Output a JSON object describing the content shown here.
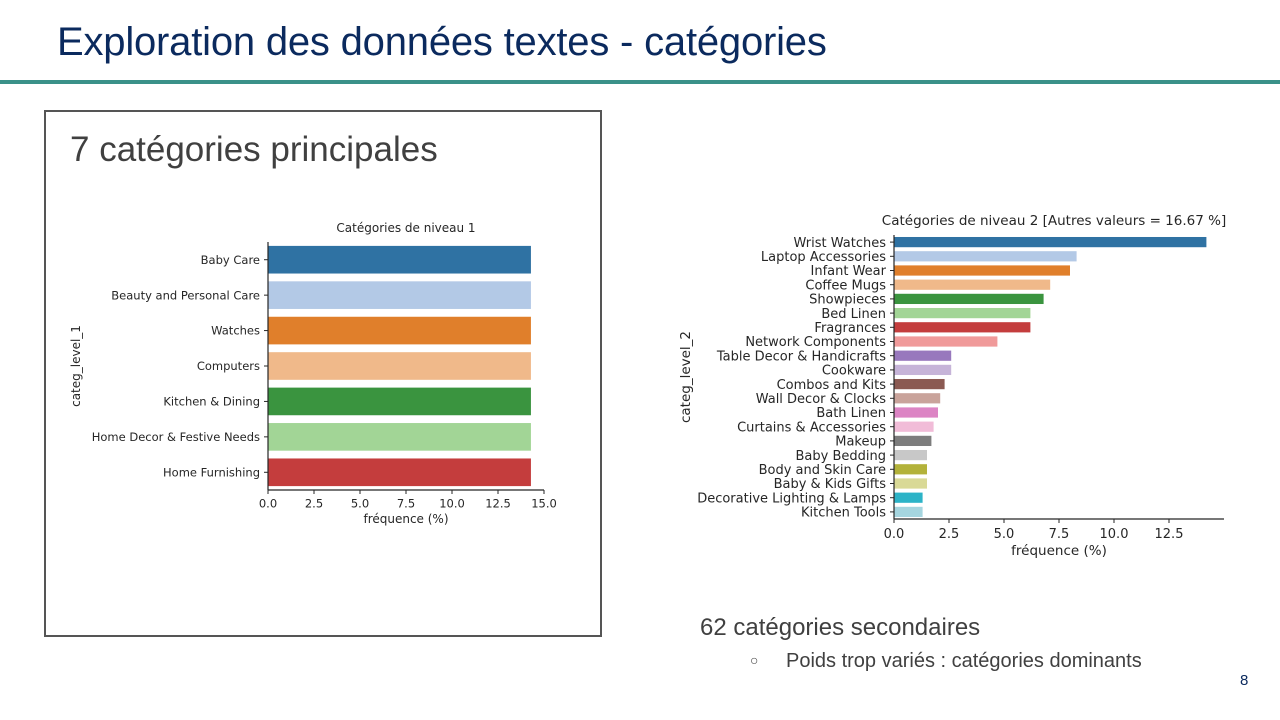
{
  "slide": {
    "title": "Exploration des données textes - catégories",
    "page_number": "8"
  },
  "left_box": {
    "heading": "7 catégories principales"
  },
  "right_notes": {
    "main_text": "62 catégories secondaires",
    "bullet_marker": "○",
    "bullet_text": "Poids trop variés : catégories dominants"
  },
  "chart_data": [
    {
      "type": "bar",
      "orientation": "horizontal",
      "title": "Catégories de niveau 1",
      "xlabel": "fréquence (%)",
      "ylabel": "categ_level_1",
      "categories": [
        "Baby Care",
        "Beauty and Personal Care",
        "Watches",
        "Computers",
        "Kitchen & Dining",
        "Home Decor & Festive Needs",
        "Home Furnishing"
      ],
      "values": [
        14.29,
        14.29,
        14.29,
        14.29,
        14.29,
        14.29,
        14.29
      ],
      "colors": [
        "#2f72a3",
        "#b3c9e6",
        "#e07f2b",
        "#f0b98a",
        "#3a943f",
        "#a2d596",
        "#c43d3d"
      ],
      "xlim": [
        0,
        15
      ],
      "xticks": [
        "0.0",
        "2.5",
        "5.0",
        "7.5",
        "10.0",
        "12.5",
        "15.0"
      ],
      "grid": false
    },
    {
      "type": "bar",
      "orientation": "horizontal",
      "title": "Catégories de niveau 2  [Autres valeurs = 16.67 %]",
      "xlabel": "fréquence (%)",
      "ylabel": "categ_level_2",
      "categories": [
        "Wrist Watches",
        "Laptop Accessories",
        "Infant Wear",
        "Coffee Mugs",
        "Showpieces",
        "Bed Linen",
        "Fragrances",
        "Network Components",
        "Table Decor & Handicrafts",
        "Cookware",
        "Combos and Kits",
        "Wall Decor & Clocks",
        "Bath Linen",
        "Curtains & Accessories",
        "Makeup",
        "Baby Bedding",
        "Body and Skin Care",
        "Baby & Kids Gifts",
        "Decorative Lighting & Lamps",
        "Kitchen Tools"
      ],
      "values": [
        14.2,
        8.3,
        8.0,
        7.1,
        6.8,
        6.2,
        6.2,
        4.7,
        2.6,
        2.6,
        2.3,
        2.1,
        2.0,
        1.8,
        1.7,
        1.5,
        1.5,
        1.5,
        1.3,
        1.3
      ],
      "colors": [
        "#2f72a3",
        "#b3c9e6",
        "#e07f2b",
        "#f0b98a",
        "#3a943f",
        "#a2d596",
        "#c43d3d",
        "#f09a9a",
        "#9878bd",
        "#c6b4d8",
        "#8b5a52",
        "#c9a39b",
        "#dc84c4",
        "#f1bcd8",
        "#7d7d7d",
        "#c8c8c8",
        "#b3b23a",
        "#d9d996",
        "#2cb3c7",
        "#a5d5df"
      ],
      "xlim": [
        0,
        15
      ],
      "xticks": [
        "0.0",
        "2.5",
        "5.0",
        "7.5",
        "10.0",
        "12.5"
      ],
      "grid": false
    }
  ]
}
